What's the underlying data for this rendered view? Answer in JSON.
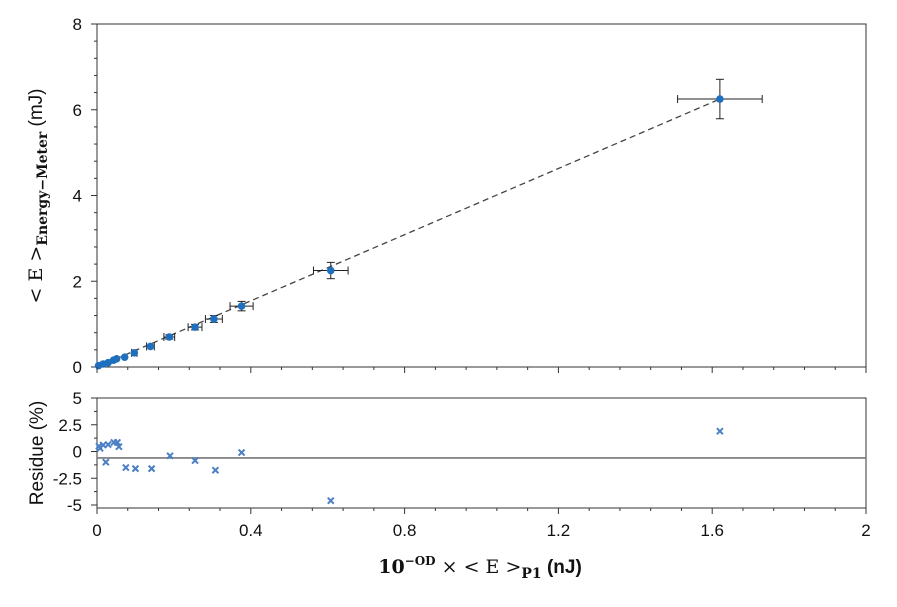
{
  "chart_data": [
    {
      "type": "scatter",
      "xlabel": {
        "prefix": "10",
        "sup": "−OD",
        "mid": " × < E >",
        "sub": "P1",
        "unit": " (nJ)"
      },
      "ylabel": {
        "prefix": "< E >",
        "sub": "Energy−Meter",
        "unit": " (mJ)"
      },
      "xlim": [
        0,
        2
      ],
      "ylim": [
        0,
        8
      ],
      "xticks": [
        "0",
        "0.4",
        "0.8",
        "1.2",
        "1.6",
        "2"
      ],
      "yticks": [
        "0",
        "2",
        "4",
        "6",
        "8"
      ],
      "grid": false,
      "marker_color": "#1f6fbf",
      "points": {
        "x": [
          0.004,
          0.016,
          0.029,
          0.043,
          0.051,
          0.072,
          0.097,
          0.139,
          0.188,
          0.255,
          0.304,
          0.376,
          0.608,
          1.62
        ],
        "y": [
          0.03,
          0.07,
          0.1,
          0.16,
          0.19,
          0.23,
          0.33,
          0.48,
          0.7,
          0.93,
          1.12,
          1.42,
          2.25,
          6.25
        ],
        "x_err": [
          0.0003,
          0.001,
          0.002,
          0.003,
          0.004,
          0.005,
          0.007,
          0.01,
          0.014,
          0.018,
          0.022,
          0.03,
          0.045,
          0.11
        ],
        "y_err": [
          0.002,
          0.005,
          0.007,
          0.011,
          0.013,
          0.016,
          0.023,
          0.034,
          0.05,
          0.065,
          0.08,
          0.11,
          0.19,
          0.46
        ]
      },
      "fit_line": {
        "style": "dashed",
        "x": [
          0,
          1.62
        ],
        "y": [
          0,
          6.25
        ]
      }
    },
    {
      "type": "scatter",
      "ylabel": "Residue (%)",
      "xlim": [
        0,
        2
      ],
      "ylim": [
        -5,
        5
      ],
      "yticks": [
        "5",
        "2.5",
        "0",
        "-2.5",
        "-5"
      ],
      "marker": "x",
      "marker_color": "#4a7fc4",
      "reference_line_y": -0.6,
      "points": {
        "x": [
          0.005,
          0.008,
          0.016,
          0.023,
          0.029,
          0.044,
          0.053,
          0.057,
          0.075,
          0.1,
          0.142,
          0.19,
          0.255,
          0.308,
          0.376,
          0.608,
          1.62
        ],
        "y": [
          0.5,
          0.3,
          0.6,
          -1.0,
          0.65,
          0.85,
          0.85,
          0.45,
          -1.5,
          -1.6,
          -1.6,
          -0.4,
          -0.85,
          -1.75,
          -0.1,
          -4.6,
          1.9
        ]
      }
    }
  ]
}
